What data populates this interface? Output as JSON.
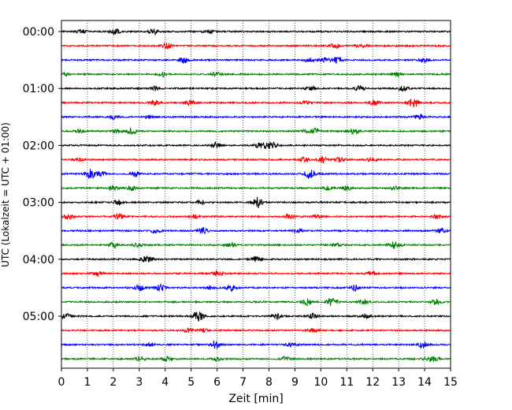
{
  "chart_data": {
    "type": "line",
    "xlabel": "Zeit  [min]",
    "ylabel": "UTC (Lokalzeit = UTC + 01:00)",
    "xlim": [
      0,
      15
    ],
    "xticks": [
      0,
      1,
      2,
      3,
      4,
      5,
      6,
      7,
      8,
      9,
      10,
      11,
      12,
      13,
      14,
      15
    ],
    "xtick_labels": [
      "0",
      "1",
      "2",
      "3",
      "4",
      "5",
      "6",
      "7",
      "8",
      "9",
      "10",
      "11",
      "12",
      "13",
      "14",
      "15"
    ],
    "ytick_labels": [
      "00:00",
      "01:00",
      "02:00",
      "03:00",
      "04:00",
      "05:00"
    ],
    "ytick_rows": [
      0,
      4,
      8,
      12,
      16,
      20
    ],
    "row_count": 24,
    "row_minutes": 15,
    "grid": "vertical-dotted",
    "trace_colors": [
      "#000000",
      "#ff0000",
      "#0000ff",
      "#008000"
    ]
  }
}
